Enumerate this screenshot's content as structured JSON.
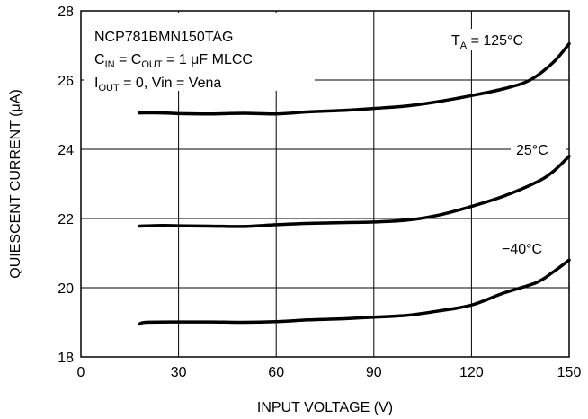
{
  "chart_data": {
    "type": "line",
    "title": "",
    "xlabel": "INPUT VOLTAGE (V)",
    "ylabel": "QUIESCENT CURRENT (μA)",
    "xlim": [
      0,
      150
    ],
    "ylim": [
      18,
      28
    ],
    "xticks": [
      0,
      30,
      60,
      90,
      120,
      150
    ],
    "yticks": [
      18,
      20,
      22,
      24,
      26,
      28
    ],
    "grid": true,
    "annotations": {
      "part": "NCP781BMN150TAG",
      "cap_line": {
        "c": "C",
        "in_sub": "IN",
        "eq1": " = C",
        "out_sub": "OUT",
        "tail": " = 1 μF MLCC"
      },
      "iout_line": {
        "i": "I",
        "out_sub": "OUT",
        "tail": " = 0, Vin = Vena"
      },
      "temp_header": {
        "t": "T",
        "a_sub": "A",
        "tail": " = 125°C"
      }
    },
    "series": [
      {
        "name": "125°C",
        "label": "T_A = 125°C",
        "x": [
          18,
          25,
          30,
          40,
          50,
          60,
          70,
          80,
          90,
          100,
          110,
          120,
          130,
          138,
          145,
          150
        ],
        "y": [
          25.05,
          25.05,
          25.03,
          25.02,
          25.04,
          25.02,
          25.08,
          25.12,
          25.18,
          25.25,
          25.38,
          25.55,
          25.75,
          26.0,
          26.5,
          27.05
        ]
      },
      {
        "name": "25°C",
        "label": "25°C",
        "x": [
          18,
          25,
          30,
          40,
          50,
          60,
          70,
          80,
          90,
          100,
          110,
          120,
          130,
          140,
          145,
          150
        ],
        "y": [
          21.78,
          21.8,
          21.79,
          21.78,
          21.77,
          21.82,
          21.86,
          21.88,
          21.9,
          21.95,
          22.1,
          22.35,
          22.65,
          23.05,
          23.35,
          23.8
        ]
      },
      {
        "name": "−40°C",
        "label": "−40°C",
        "x": [
          18,
          20,
          30,
          40,
          50,
          60,
          70,
          80,
          90,
          100,
          110,
          120,
          130,
          140,
          145,
          150
        ],
        "y": [
          18.95,
          19.0,
          19.01,
          19.01,
          19.0,
          19.02,
          19.07,
          19.1,
          19.15,
          19.2,
          19.33,
          19.5,
          19.85,
          20.15,
          20.45,
          20.8
        ]
      }
    ]
  }
}
